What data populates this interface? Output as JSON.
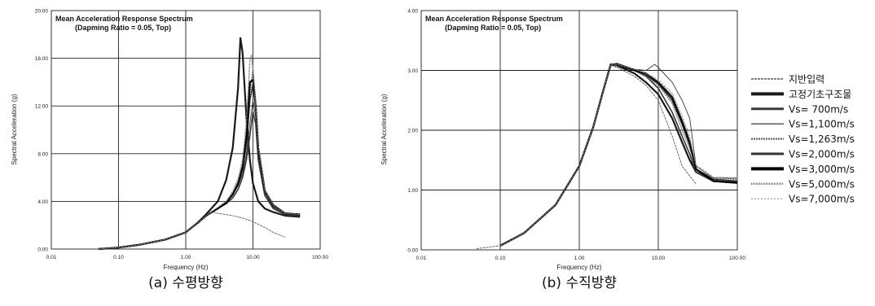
{
  "legend": [
    {
      "label": "지반입력",
      "width": 1.6,
      "color": "#555555",
      "dash": "3,1"
    },
    {
      "label": "고정기초구조물",
      "width": 4.0,
      "color": "#1a1a1a",
      "dash": ""
    },
    {
      "label": "Vs=  700m/s",
      "width": 3.0,
      "color": "#3a3a3a",
      "dash": ""
    },
    {
      "label": "Vs=1,100m/s",
      "width": 1.2,
      "color": "#222222",
      "dash": ""
    },
    {
      "label": "Vs=1,263m/s",
      "width": 2.2,
      "color": "#666666",
      "dash": "2,1"
    },
    {
      "label": "Vs=2,000m/s",
      "width": 3.0,
      "color": "#333333",
      "dash": ""
    },
    {
      "label": "Vs=3,000m/s",
      "width": 4.0,
      "color": "#000000",
      "dash": ""
    },
    {
      "label": "Vs=5,000m/s",
      "width": 2.6,
      "color": "#777777",
      "dash": "1,1"
    },
    {
      "label": "Vs=7,000m/s",
      "width": 1.0,
      "color": "#888888",
      "dash": "2,2"
    }
  ],
  "chart_data": [
    {
      "type": "line",
      "caption": "(a) 수평방향",
      "title": "Mean Acceleration Response Spectrum",
      "subtitle": "(Dapming Ratio = 0.05, Top)",
      "xlabel": "Frequency (Hz)",
      "ylabel": "Spectral Acceleration (g)",
      "xscale": "log",
      "xlim": [
        0.01,
        100
      ],
      "ylim": [
        0,
        20
      ],
      "xticks": [
        0.01,
        0.1,
        1,
        10,
        100
      ],
      "xtick_labels": [
        "0.01",
        "0.10",
        "1.00",
        "10.00",
        "100.00"
      ],
      "yticks": [
        0,
        4,
        8,
        12,
        16,
        20
      ],
      "ytick_labels": [
        "0.00",
        "4.00",
        "8.00",
        "12.00",
        "16.00",
        "20.00"
      ],
      "series": [
        {
          "name": "지반입력",
          "x": [
            0.05,
            0.1,
            0.2,
            0.5,
            1,
            1.5,
            2,
            2.5,
            3,
            5,
            7,
            10,
            15,
            20,
            30
          ],
          "y": [
            0,
            0.12,
            0.35,
            0.8,
            1.4,
            2.1,
            2.7,
            3.1,
            3.0,
            2.8,
            2.6,
            2.3,
            1.8,
            1.4,
            1.0
          ]
        },
        {
          "name": "고정기초구조물",
          "x": [
            0.05,
            0.1,
            0.2,
            0.5,
            1,
            1.5,
            2,
            3,
            4,
            5,
            6,
            6.5,
            7,
            8,
            9,
            10,
            12,
            15,
            20,
            30,
            50
          ],
          "y": [
            0,
            0.12,
            0.35,
            0.8,
            1.4,
            2.2,
            2.9,
            4.0,
            5.8,
            8.5,
            13.5,
            17.7,
            16.5,
            11.0,
            7.5,
            5.5,
            4.0,
            3.4,
            3.1,
            2.8,
            2.7
          ]
        },
        {
          "name": "Vs=  700m/s",
          "x": [
            0.05,
            0.1,
            0.2,
            0.5,
            1,
            1.5,
            2,
            3,
            4,
            5,
            6,
            7,
            8,
            9,
            10,
            11,
            12,
            15,
            20,
            30,
            50
          ],
          "y": [
            0,
            0.12,
            0.35,
            0.8,
            1.4,
            2.2,
            2.8,
            3.4,
            3.8,
            4.3,
            5.0,
            6.0,
            7.5,
            9.5,
            11.5,
            10.5,
            7.5,
            4.5,
            3.4,
            2.9,
            2.8
          ]
        },
        {
          "name": "Vs=1,100m/s",
          "x": [
            0.05,
            0.1,
            0.2,
            0.5,
            1,
            1.5,
            2,
            3,
            4,
            5,
            6,
            7,
            8,
            9,
            10,
            11,
            12,
            15,
            20,
            30,
            50
          ],
          "y": [
            0,
            0.12,
            0.35,
            0.8,
            1.4,
            2.2,
            2.8,
            3.4,
            3.9,
            4.5,
            5.3,
            6.3,
            8.0,
            10.5,
            12.5,
            11.0,
            8.0,
            4.7,
            3.5,
            3.0,
            2.9
          ]
        },
        {
          "name": "Vs=1,263m/s",
          "x": [
            0.05,
            0.1,
            0.2,
            0.5,
            1,
            1.5,
            2,
            3,
            4,
            5,
            6,
            7,
            8,
            9,
            10,
            11,
            12,
            15,
            20,
            30,
            50
          ],
          "y": [
            0,
            0.12,
            0.35,
            0.8,
            1.4,
            2.2,
            2.8,
            3.4,
            3.9,
            4.6,
            5.5,
            6.8,
            9.0,
            13.0,
            15.2,
            12.5,
            8.5,
            4.8,
            3.6,
            3.0,
            2.9
          ]
        },
        {
          "name": "Vs=2,000m/s",
          "x": [
            0.05,
            0.1,
            0.2,
            0.5,
            1,
            1.5,
            2,
            3,
            4,
            5,
            6,
            7,
            8,
            9,
            10,
            11,
            12,
            15,
            20,
            30,
            50
          ],
          "y": [
            0,
            0.12,
            0.35,
            0.8,
            1.4,
            2.2,
            2.8,
            3.4,
            3.9,
            4.6,
            5.4,
            6.7,
            8.8,
            12.5,
            13.8,
            11.8,
            8.2,
            4.8,
            3.6,
            3.0,
            2.9
          ]
        },
        {
          "name": "Vs=3,000m/s",
          "x": [
            0.05,
            0.1,
            0.2,
            0.5,
            1,
            1.5,
            2,
            3,
            4,
            5,
            6,
            7,
            8,
            9,
            10,
            11,
            12,
            15,
            20,
            30,
            50
          ],
          "y": [
            0,
            0.12,
            0.35,
            0.8,
            1.4,
            2.2,
            2.8,
            3.4,
            3.9,
            4.6,
            5.5,
            6.9,
            9.5,
            14.0,
            14.2,
            12.0,
            8.5,
            4.9,
            3.7,
            3.0,
            2.9
          ]
        },
        {
          "name": "Vs=5,000m/s",
          "x": [
            0.05,
            0.1,
            0.2,
            0.5,
            1,
            1.5,
            2,
            3,
            4,
            5,
            6,
            7,
            8,
            9,
            9.5,
            10,
            11,
            12,
            15,
            20,
            30,
            50
          ],
          "y": [
            0,
            0.12,
            0.35,
            0.8,
            1.4,
            2.2,
            2.8,
            3.5,
            4.0,
            4.8,
            5.8,
            7.3,
            10.5,
            15.8,
            16.3,
            15.0,
            12.0,
            8.6,
            4.9,
            3.7,
            3.0,
            2.9
          ]
        },
        {
          "name": "Vs=7,000m/s",
          "x": [
            0.05,
            0.1,
            0.2,
            0.5,
            1,
            1.5,
            2,
            3,
            4,
            5,
            6,
            7,
            8,
            9,
            9.5,
            10,
            11,
            12,
            15,
            20,
            30,
            50
          ],
          "y": [
            0,
            0.12,
            0.35,
            0.8,
            1.4,
            2.2,
            2.8,
            3.5,
            4.0,
            4.9,
            6.0,
            7.6,
            11.0,
            16.0,
            16.2,
            15.2,
            12.2,
            8.8,
            5.0,
            3.7,
            3.0,
            2.9
          ]
        }
      ]
    },
    {
      "type": "line",
      "caption": "(b) 수직방향",
      "title": "Mean Acceleration Response Spectrum",
      "subtitle": "(Dapming Ratio = 0.05, Top)",
      "xlabel": "Frequency (Hz)",
      "ylabel": "Spectral Acceleration (g)",
      "xscale": "log",
      "xlim": [
        0.01,
        100
      ],
      "ylim": [
        0,
        4
      ],
      "xticks": [
        0.01,
        0.1,
        1,
        10,
        100
      ],
      "xtick_labels": [
        "0.01",
        "0.10",
        "1.00",
        "10.00",
        "100.00"
      ],
      "yticks": [
        0,
        1,
        2,
        3,
        4
      ],
      "ytick_labels": [
        "0.00",
        "1.00",
        "2.00",
        "3.00",
        "4.00"
      ],
      "series": [
        {
          "name": "지반입력",
          "x": [
            0.05,
            0.1,
            0.2,
            0.5,
            1,
            1.5,
            2,
            2.5,
            3,
            5,
            7,
            10,
            15,
            20,
            30
          ],
          "y": [
            0.02,
            0.07,
            0.28,
            0.75,
            1.4,
            2.05,
            2.65,
            3.08,
            3.05,
            2.9,
            2.75,
            2.5,
            1.9,
            1.4,
            1.1
          ]
        },
        {
          "name": "고정기초구조물",
          "x": [
            0.1,
            0.2,
            0.5,
            1,
            1.5,
            2,
            2.5,
            3,
            5,
            7,
            10,
            15,
            20,
            25,
            30,
            50,
            100
          ],
          "y": [
            0.07,
            0.28,
            0.75,
            1.4,
            2.05,
            2.65,
            3.1,
            3.08,
            2.95,
            2.8,
            2.6,
            2.2,
            1.8,
            1.5,
            1.3,
            1.15,
            1.12
          ]
        },
        {
          "name": "Vs=  700m/s",
          "x": [
            0.1,
            0.2,
            0.5,
            1,
            1.5,
            2,
            2.5,
            3,
            5,
            7,
            10,
            15,
            20,
            25,
            30,
            50,
            100
          ],
          "y": [
            0.07,
            0.28,
            0.75,
            1.4,
            2.05,
            2.65,
            3.1,
            3.08,
            3.0,
            2.9,
            2.7,
            2.3,
            1.9,
            1.6,
            1.3,
            1.15,
            1.13
          ]
        },
        {
          "name": "Vs=1,100m/s",
          "x": [
            0.1,
            0.2,
            0.5,
            1,
            1.5,
            2,
            2.5,
            3,
            5,
            7,
            9,
            10,
            15,
            20,
            25,
            30,
            50,
            100
          ],
          "y": [
            0.07,
            0.28,
            0.75,
            1.4,
            2.05,
            2.65,
            3.1,
            3.12,
            3.02,
            3.0,
            3.1,
            3.05,
            2.8,
            2.5,
            2.2,
            1.4,
            1.2,
            1.2
          ]
        },
        {
          "name": "Vs=1,263m/s",
          "x": [
            0.1,
            0.2,
            0.5,
            1,
            1.5,
            2,
            2.5,
            3,
            5,
            7,
            10,
            15,
            20,
            25,
            30,
            50,
            100
          ],
          "y": [
            0.07,
            0.28,
            0.75,
            1.4,
            2.05,
            2.65,
            3.1,
            3.1,
            3.0,
            2.9,
            2.75,
            2.45,
            2.0,
            1.7,
            1.35,
            1.2,
            1.18
          ]
        },
        {
          "name": "Vs=2,000m/s",
          "x": [
            0.1,
            0.2,
            0.5,
            1,
            1.5,
            2,
            2.5,
            3,
            5,
            7,
            10,
            15,
            20,
            25,
            30,
            50,
            100
          ],
          "y": [
            0.07,
            0.28,
            0.75,
            1.4,
            2.05,
            2.65,
            3.1,
            3.1,
            3.0,
            2.92,
            2.78,
            2.5,
            2.1,
            1.75,
            1.35,
            1.18,
            1.15
          ]
        },
        {
          "name": "Vs=3,000m/s",
          "x": [
            0.1,
            0.2,
            0.5,
            1,
            1.5,
            2,
            2.5,
            3,
            5,
            7,
            10,
            15,
            20,
            25,
            30,
            50,
            100
          ],
          "y": [
            0.07,
            0.28,
            0.75,
            1.4,
            2.05,
            2.65,
            3.1,
            3.1,
            3.0,
            2.95,
            2.8,
            2.55,
            2.15,
            1.8,
            1.35,
            1.15,
            1.12
          ]
        },
        {
          "name": "Vs=5,000m/s",
          "x": [
            0.1,
            0.2,
            0.5,
            1,
            1.5,
            2,
            2.5,
            3,
            5,
            7,
            10,
            15,
            20,
            25,
            30,
            50,
            100
          ],
          "y": [
            0.07,
            0.28,
            0.75,
            1.4,
            2.05,
            2.65,
            3.1,
            3.1,
            3.02,
            2.95,
            2.82,
            2.6,
            2.2,
            1.85,
            1.4,
            1.2,
            1.2
          ]
        },
        {
          "name": "Vs=7,000m/s",
          "x": [
            0.1,
            0.2,
            0.5,
            1,
            1.5,
            2,
            2.5,
            3,
            5,
            7,
            10,
            15,
            20,
            25,
            30,
            50,
            100
          ],
          "y": [
            0.07,
            0.28,
            0.75,
            1.4,
            2.05,
            2.65,
            3.1,
            3.1,
            3.02,
            2.95,
            2.85,
            2.62,
            2.25,
            1.9,
            1.42,
            1.22,
            1.2
          ]
        }
      ]
    }
  ]
}
